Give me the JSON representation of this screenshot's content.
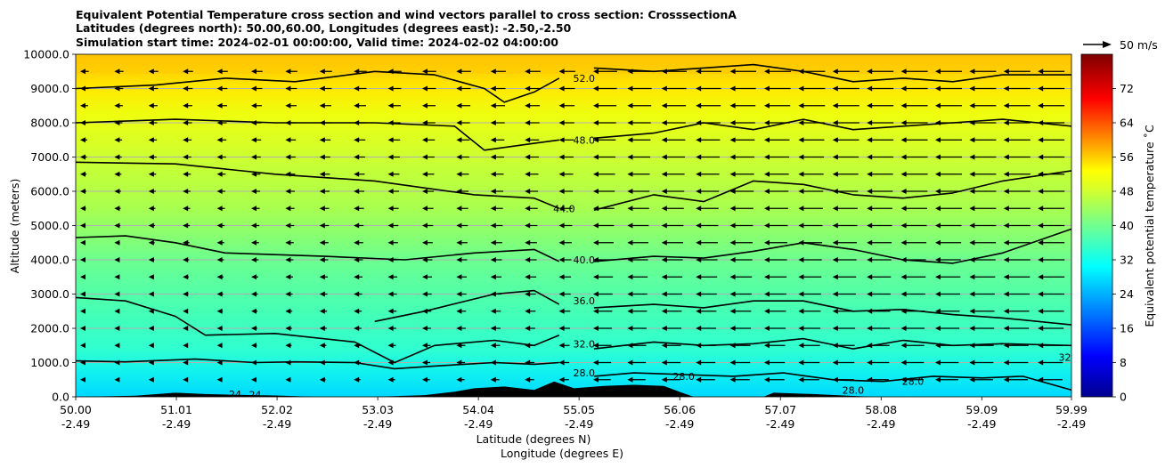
{
  "chart_data": {
    "type": "contour",
    "title_lines": [
      "Equivalent Potential Temperature cross section and wind vectors parallel to cross section: CrosssectionA",
      "Latitudes (degrees north): 50.00,60.00, Longitudes (degrees east): -2.50,-2.50",
      "Simulation start time: 2024-02-01 00:00:00, Valid time: 2024-02-02 04:00:00"
    ],
    "ylabel": "Altitude (meters)",
    "xlabel_lat": "Latitude (degrees N)",
    "xlabel_lon": "Longitude (degrees E)",
    "ylim": [
      0,
      10000
    ],
    "yticks": [
      "0.0",
      "1000.0",
      "2000.0",
      "3000.0",
      "4000.0",
      "5000.0",
      "6000.0",
      "7000.0",
      "8000.0",
      "9000.0",
      "10000.0"
    ],
    "xlim": [
      50.0,
      59.99
    ],
    "xticks": [
      {
        "lat": "50.00",
        "lon": "-2.49"
      },
      {
        "lat": "51.01",
        "lon": "-2.49"
      },
      {
        "lat": "52.02",
        "lon": "-2.49"
      },
      {
        "lat": "53.03",
        "lon": "-2.49"
      },
      {
        "lat": "54.04",
        "lon": "-2.49"
      },
      {
        "lat": "55.05",
        "lon": "-2.49"
      },
      {
        "lat": "56.06",
        "lon": "-2.49"
      },
      {
        "lat": "57.07",
        "lon": "-2.49"
      },
      {
        "lat": "58.08",
        "lon": "-2.49"
      },
      {
        "lat": "59.09",
        "lon": "-2.49"
      },
      {
        "lat": "59.99",
        "lon": "-2.49"
      }
    ],
    "colorbar": {
      "label": "Equivalent potential temperature ˚C",
      "range": [
        0,
        80
      ],
      "ticks": [
        "0",
        "8",
        "16",
        "24",
        "32",
        "40",
        "48",
        "56",
        "64",
        "72"
      ]
    },
    "quiver_key": "50 m/s",
    "contour_labels": [
      {
        "text": "52.0",
        "lat": 55.1,
        "alt": 9300
      },
      {
        "text": "48.0",
        "lat": 55.1,
        "alt": 7500
      },
      {
        "text": "44.0",
        "lat": 54.9,
        "alt": 5500
      },
      {
        "text": "40.0",
        "lat": 55.1,
        "alt": 4000
      },
      {
        "text": "36.0",
        "lat": 55.1,
        "alt": 2800
      },
      {
        "text": "32.0",
        "lat": 55.1,
        "alt": 1550
      },
      {
        "text": "28.0",
        "lat": 55.1,
        "alt": 700
      },
      {
        "text": "28.0",
        "lat": 58.4,
        "alt": 460
      },
      {
        "text": "28.0",
        "lat": 56.1,
        "alt": 600
      },
      {
        "text": "28.0",
        "lat": 57.8,
        "alt": 200
      },
      {
        "text": "24",
        "lat": 51.6,
        "alt": 80
      },
      {
        "text": "24",
        "lat": 51.8,
        "alt": 60
      },
      {
        "text": "32.0",
        "lat": 59.97,
        "alt": 1150
      }
    ],
    "contour_levels": [
      {
        "level": 28,
        "alt_profile": [
          [
            50.0,
            1050
          ],
          [
            50.5,
            1020
          ],
          [
            51.2,
            1100
          ],
          [
            51.8,
            1000
          ],
          [
            52.2,
            1020
          ],
          [
            52.8,
            1000
          ],
          [
            53.2,
            820
          ],
          [
            53.6,
            900
          ],
          [
            54.2,
            1000
          ],
          [
            54.6,
            950
          ],
          [
            54.85,
            1000
          ]
        ]
      },
      {
        "level": 32,
        "alt_profile": [
          [
            50.0,
            2900
          ],
          [
            50.5,
            2800
          ],
          [
            51.0,
            2350
          ],
          [
            51.3,
            1800
          ],
          [
            52.0,
            1850
          ],
          [
            52.8,
            1600
          ],
          [
            53.2,
            1000
          ],
          [
            53.6,
            1500
          ],
          [
            54.2,
            1650
          ],
          [
            54.6,
            1500
          ],
          [
            54.85,
            1800
          ]
        ]
      },
      {
        "level": 36,
        "alt_profile": [
          [
            53.0,
            2200
          ],
          [
            53.5,
            2500
          ],
          [
            54.2,
            3000
          ],
          [
            54.6,
            3100
          ],
          [
            54.85,
            2700
          ]
        ]
      },
      {
        "level": 40,
        "alt_profile": [
          [
            50.0,
            4650
          ],
          [
            50.5,
            4700
          ],
          [
            51.0,
            4500
          ],
          [
            51.5,
            4200
          ],
          [
            52.5,
            4100
          ],
          [
            53.3,
            4000
          ],
          [
            54.0,
            4200
          ],
          [
            54.6,
            4300
          ],
          [
            54.85,
            3950
          ]
        ]
      },
      {
        "level": 44,
        "alt_profile": [
          [
            50.0,
            6850
          ],
          [
            51.0,
            6800
          ],
          [
            52.0,
            6500
          ],
          [
            53.0,
            6300
          ],
          [
            54.0,
            5900
          ],
          [
            54.6,
            5800
          ],
          [
            54.85,
            5500
          ]
        ]
      },
      {
        "level": 48,
        "alt_profile": [
          [
            50.0,
            8000
          ],
          [
            51.0,
            8100
          ],
          [
            52.0,
            8000
          ],
          [
            53.0,
            8000
          ],
          [
            53.8,
            7900
          ],
          [
            54.1,
            7200
          ],
          [
            54.6,
            7400
          ],
          [
            54.85,
            7500
          ]
        ]
      },
      {
        "level": 52,
        "alt_profile": [
          [
            50.0,
            9000
          ],
          [
            50.8,
            9100
          ],
          [
            51.5,
            9300
          ],
          [
            52.2,
            9200
          ],
          [
            53.0,
            9500
          ],
          [
            53.6,
            9400
          ],
          [
            54.1,
            9000
          ],
          [
            54.3,
            8600
          ],
          [
            54.6,
            8900
          ],
          [
            54.85,
            9300
          ]
        ]
      },
      {
        "level": 28,
        "alt_profile": [
          [
            55.2,
            600
          ],
          [
            55.6,
            700
          ],
          [
            56.1,
            650
          ],
          [
            56.6,
            600
          ],
          [
            57.1,
            700
          ],
          [
            57.6,
            500
          ],
          [
            58.1,
            450
          ],
          [
            58.6,
            600
          ],
          [
            59.1,
            550
          ],
          [
            59.5,
            600
          ],
          [
            59.99,
            200
          ]
        ]
      },
      {
        "level": 32,
        "alt_profile": [
          [
            55.2,
            1400
          ],
          [
            55.8,
            1600
          ],
          [
            56.3,
            1500
          ],
          [
            56.8,
            1550
          ],
          [
            57.3,
            1700
          ],
          [
            57.8,
            1400
          ],
          [
            58.3,
            1650
          ],
          [
            58.8,
            1500
          ],
          [
            59.3,
            1550
          ],
          [
            59.99,
            1500
          ]
        ]
      },
      {
        "level": 36,
        "alt_profile": [
          [
            55.2,
            2600
          ],
          [
            55.8,
            2700
          ],
          [
            56.3,
            2600
          ],
          [
            56.8,
            2800
          ],
          [
            57.3,
            2800
          ],
          [
            57.8,
            2500
          ],
          [
            58.3,
            2550
          ],
          [
            58.8,
            2400
          ],
          [
            59.3,
            2300
          ],
          [
            59.99,
            2100
          ]
        ]
      },
      {
        "level": 40,
        "alt_profile": [
          [
            55.2,
            3950
          ],
          [
            55.8,
            4100
          ],
          [
            56.3,
            4050
          ],
          [
            56.8,
            4250
          ],
          [
            57.3,
            4500
          ],
          [
            57.8,
            4300
          ],
          [
            58.3,
            4000
          ],
          [
            58.8,
            3900
          ],
          [
            59.3,
            4200
          ],
          [
            59.99,
            4900
          ]
        ]
      },
      {
        "level": 44,
        "alt_profile": [
          [
            55.2,
            5450
          ],
          [
            55.8,
            5900
          ],
          [
            56.3,
            5700
          ],
          [
            56.8,
            6300
          ],
          [
            57.3,
            6200
          ],
          [
            57.8,
            5900
          ],
          [
            58.3,
            5800
          ],
          [
            58.8,
            5950
          ],
          [
            59.3,
            6300
          ],
          [
            59.99,
            6600
          ]
        ]
      },
      {
        "level": 48,
        "alt_profile": [
          [
            55.2,
            7550
          ],
          [
            55.8,
            7700
          ],
          [
            56.3,
            8000
          ],
          [
            56.8,
            7800
          ],
          [
            57.3,
            8100
          ],
          [
            57.8,
            7800
          ],
          [
            58.3,
            7900
          ],
          [
            58.8,
            8000
          ],
          [
            59.3,
            8100
          ],
          [
            59.99,
            7900
          ]
        ]
      },
      {
        "level": 52,
        "alt_profile": [
          [
            55.2,
            9600
          ],
          [
            55.8,
            9500
          ],
          [
            56.3,
            9600
          ],
          [
            56.8,
            9700
          ],
          [
            57.3,
            9500
          ],
          [
            57.8,
            9200
          ],
          [
            58.3,
            9300
          ],
          [
            58.8,
            9200
          ],
          [
            59.3,
            9400
          ],
          [
            59.99,
            9400
          ]
        ]
      }
    ],
    "terrain_profile": [
      [
        50.0,
        0
      ],
      [
        50.6,
        30
      ],
      [
        51.0,
        120
      ],
      [
        51.3,
        80
      ],
      [
        51.6,
        60
      ],
      [
        52.0,
        40
      ],
      [
        52.4,
        0
      ],
      [
        53.0,
        0
      ],
      [
        53.5,
        50
      ],
      [
        53.8,
        150
      ],
      [
        54.0,
        250
      ],
      [
        54.3,
        300
      ],
      [
        54.6,
        200
      ],
      [
        54.8,
        450
      ],
      [
        55.0,
        250
      ],
      [
        55.3,
        320
      ],
      [
        55.6,
        350
      ],
      [
        55.9,
        320
      ],
      [
        56.1,
        100
      ],
      [
        56.2,
        0
      ],
      [
        56.9,
        0
      ],
      [
        57.0,
        120
      ],
      [
        57.4,
        80
      ],
      [
        57.7,
        40
      ],
      [
        58.0,
        0
      ],
      [
        59.99,
        0
      ]
    ]
  }
}
